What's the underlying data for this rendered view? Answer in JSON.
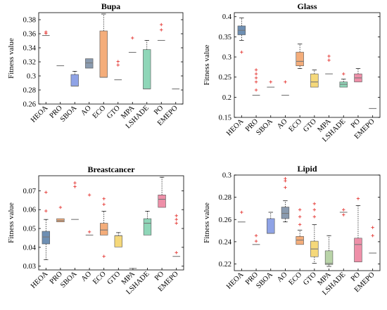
{
  "chart_data": [
    {
      "type": "box",
      "title": "Bupa",
      "ylabel": "Fitness value",
      "ylim": [
        0.26,
        0.39
      ],
      "yticks": [
        0.26,
        0.28,
        0.3,
        0.32,
        0.34,
        0.36,
        0.38
      ],
      "ytick_labels": [
        "0.26",
        "0.28",
        "0.3",
        "0.32",
        "0.34",
        "0.36",
        "0.38"
      ],
      "categories": [
        "HEOA",
        "PRO",
        "SBOA",
        "AO",
        "ECO",
        "GTO",
        "MPA",
        "LSHADE",
        "PO",
        "EMEPO"
      ],
      "boxes": [
        {
          "q1": 0.3575,
          "median": 0.3575,
          "q3": 0.3575,
          "lw": 0.3575,
          "uw": 0.3575,
          "outliers": [
            0.3605,
            0.3625
          ],
          "color": "#f5a3a3"
        },
        {
          "q1": 0.3145,
          "median": 0.3145,
          "q3": 0.3145,
          "lw": 0.3145,
          "uw": 0.3145,
          "outliers": [],
          "color": "#f0c080"
        },
        {
          "q1": 0.2855,
          "median": 0.2855,
          "q3": 0.302,
          "lw": 0.2855,
          "uw": 0.3065,
          "outliers": [],
          "color": "#8fa3e6"
        },
        {
          "q1": 0.311,
          "median": 0.3185,
          "q3": 0.3245,
          "lw": 0.311,
          "uw": 0.3245,
          "outliers": [],
          "color": "#8a9bb0"
        },
        {
          "q1": 0.298,
          "median": 0.298,
          "q3": 0.364,
          "lw": 0.298,
          "uw": 0.388,
          "outliers": [],
          "color": "#f4ad7a"
        },
        {
          "q1": 0.2945,
          "median": 0.2945,
          "q3": 0.2945,
          "lw": 0.2945,
          "uw": 0.2945,
          "outliers": [
            0.3155,
            0.3205
          ],
          "color": "#f5d87a"
        },
        {
          "q1": 0.3335,
          "median": 0.3335,
          "q3": 0.3335,
          "lw": 0.3335,
          "uw": 0.3335,
          "outliers": [
            0.354
          ],
          "color": "#b9d4a8"
        },
        {
          "q1": 0.2815,
          "median": 0.2815,
          "q3": 0.3375,
          "lw": 0.2815,
          "uw": 0.3505,
          "outliers": [],
          "color": "#8fd6b8"
        },
        {
          "q1": 0.3505,
          "median": 0.3505,
          "q3": 0.3505,
          "lw": 0.3505,
          "uw": 0.3505,
          "outliers": [
            0.3655,
            0.373
          ],
          "color": "#ee8fa8"
        },
        {
          "q1": 0.2815,
          "median": 0.2815,
          "q3": 0.2815,
          "lw": 0.2815,
          "uw": 0.2815,
          "outliers": [],
          "color": "#cccccc"
        }
      ]
    },
    {
      "type": "box",
      "title": "Glass",
      "ylabel": "Fitness value",
      "ylim": [
        0.15,
        0.41
      ],
      "yticks": [
        0.15,
        0.2,
        0.25,
        0.3,
        0.35,
        0.4
      ],
      "ytick_labels": [
        "0.15",
        "0.2",
        "0.25",
        "0.3",
        "0.35",
        "0.4"
      ],
      "categories": [
        "HEOA",
        "PRO",
        "SBOA",
        "AO",
        "ECO",
        "GTO",
        "MPA",
        "LSHADE",
        "PO",
        "EMEPO"
      ],
      "boxes": [
        {
          "q1": 0.355,
          "median": 0.366,
          "q3": 0.377,
          "lw": 0.341,
          "uw": 0.397,
          "outliers": [
            0.312
          ],
          "color": "#6e8fb3"
        },
        {
          "q1": 0.205,
          "median": 0.205,
          "q3": 0.205,
          "lw": 0.205,
          "uw": 0.205,
          "outliers": [
            0.218,
            0.238,
            0.248,
            0.258,
            0.268
          ],
          "color": "#f0c080"
        },
        {
          "q1": 0.225,
          "median": 0.225,
          "q3": 0.225,
          "lw": 0.225,
          "uw": 0.225,
          "outliers": [
            0.238
          ],
          "color": "#8fa3e6"
        },
        {
          "q1": 0.205,
          "median": 0.205,
          "q3": 0.205,
          "lw": 0.205,
          "uw": 0.205,
          "outliers": [
            0.238
          ],
          "color": "#8a9bb0"
        },
        {
          "q1": 0.278,
          "median": 0.289,
          "q3": 0.312,
          "lw": 0.271,
          "uw": 0.332,
          "outliers": [],
          "color": "#f4ad7a"
        },
        {
          "q1": 0.225,
          "median": 0.238,
          "q3": 0.258,
          "lw": 0.225,
          "uw": 0.268,
          "outliers": [],
          "color": "#f5d87a"
        },
        {
          "q1": 0.258,
          "median": 0.258,
          "q3": 0.258,
          "lw": 0.258,
          "uw": 0.258,
          "outliers": [
            0.292,
            0.302
          ],
          "color": "#b9d4a8"
        },
        {
          "q1": 0.225,
          "median": 0.232,
          "q3": 0.238,
          "lw": 0.225,
          "uw": 0.245,
          "outliers": [
            0.258
          ],
          "color": "#8fd6b8"
        },
        {
          "q1": 0.238,
          "median": 0.248,
          "q3": 0.258,
          "lw": 0.238,
          "uw": 0.271,
          "outliers": [],
          "color": "#ee8fa8"
        },
        {
          "q1": 0.172,
          "median": 0.172,
          "q3": 0.172,
          "lw": 0.172,
          "uw": 0.172,
          "outliers": [],
          "color": "#cccccc"
        }
      ]
    },
    {
      "type": "box",
      "title": "Breastcancer",
      "ylabel": "Fitness value",
      "ylim": [
        0.028,
        0.078
      ],
      "yticks": [
        0.03,
        0.04,
        0.05,
        0.06,
        0.07
      ],
      "ytick_labels": [
        "0.03",
        "0.04",
        "0.05",
        "0.06",
        "0.07"
      ],
      "categories": [
        "HEOA",
        "PRO",
        "SBOA",
        "AO",
        "ECO",
        "GTO",
        "MPA",
        "LSHADE",
        "PO",
        "EMEPO"
      ],
      "boxes": [
        {
          "q1": 0.0418,
          "median": 0.0455,
          "q3": 0.0485,
          "lw": 0.0335,
          "uw": 0.0548,
          "outliers": [
            0.0593,
            0.0692
          ],
          "color": "#6e8fb3"
        },
        {
          "q1": 0.0535,
          "median": 0.0542,
          "q3": 0.0552,
          "lw": 0.0535,
          "uw": 0.0552,
          "outliers": [
            0.0612
          ],
          "color": "#f4ad7a"
        },
        {
          "q1": 0.0548,
          "median": 0.0548,
          "q3": 0.0548,
          "lw": 0.0548,
          "uw": 0.0548,
          "outliers": [
            0.0722,
            0.0742
          ],
          "color": "#8fa3e6"
        },
        {
          "q1": 0.0465,
          "median": 0.0465,
          "q3": 0.0465,
          "lw": 0.0465,
          "uw": 0.0465,
          "outliers": [
            0.0482,
            0.0678
          ],
          "color": "#8a9bb0"
        },
        {
          "q1": 0.0465,
          "median": 0.0492,
          "q3": 0.0528,
          "lw": 0.0465,
          "uw": 0.0592,
          "outliers": [
            0.0352,
            0.0628,
            0.0658
          ],
          "color": "#f4ad7a"
        },
        {
          "q1": 0.0402,
          "median": 0.0462,
          "q3": 0.0462,
          "lw": 0.0402,
          "uw": 0.0478,
          "outliers": [],
          "color": "#f5d87a"
        },
        {
          "q1": 0.0288,
          "median": 0.0288,
          "q3": 0.0288,
          "lw": 0.0288,
          "uw": 0.0288,
          "outliers": [],
          "color": "#b9d4a8"
        },
        {
          "q1": 0.0465,
          "median": 0.0528,
          "q3": 0.0552,
          "lw": 0.0465,
          "uw": 0.0592,
          "outliers": [],
          "color": "#8fd6b8"
        },
        {
          "q1": 0.0612,
          "median": 0.0655,
          "q3": 0.0678,
          "lw": 0.0612,
          "uw": 0.0772,
          "outliers": [],
          "color": "#ee8fa8"
        },
        {
          "q1": 0.0352,
          "median": 0.0352,
          "q3": 0.0352,
          "lw": 0.0352,
          "uw": 0.0352,
          "outliers": [
            0.0372,
            0.0528,
            0.0548,
            0.0568
          ],
          "color": "#cccccc"
        }
      ]
    },
    {
      "type": "box",
      "title": "Lipid",
      "ylabel": "Fitness value",
      "ylim": [
        0.214,
        0.3
      ],
      "yticks": [
        0.22,
        0.24,
        0.26,
        0.28,
        0.3
      ],
      "ytick_labels": [
        "0.22",
        "0.24",
        "0.26",
        "0.28",
        "0.3"
      ],
      "categories": [
        "HEOA",
        "PRO",
        "SBOA",
        "AO",
        "ECO",
        "GTO",
        "MPA",
        "LSHADE",
        "PO",
        "EMEPO"
      ],
      "boxes": [
        {
          "q1": 0.2578,
          "median": 0.2578,
          "q3": 0.2578,
          "lw": 0.2578,
          "uw": 0.2578,
          "outliers": [
            0.2665
          ],
          "color": "#f5a3a3"
        },
        {
          "q1": 0.2375,
          "median": 0.2375,
          "q3": 0.2375,
          "lw": 0.2375,
          "uw": 0.2375,
          "outliers": [
            0.2405,
            0.2455
          ],
          "color": "#f0c080"
        },
        {
          "q1": 0.2475,
          "median": 0.2475,
          "q3": 0.2608,
          "lw": 0.2475,
          "uw": 0.2665,
          "outliers": [],
          "color": "#8fa3e6"
        },
        {
          "q1": 0.2608,
          "median": 0.2655,
          "q3": 0.2712,
          "lw": 0.2578,
          "uw": 0.2768,
          "outliers": [
            0.2888,
            0.2948,
            0.2968
          ],
          "color": "#8a9bb0"
        },
        {
          "q1": 0.2375,
          "median": 0.2415,
          "q3": 0.2448,
          "lw": 0.2375,
          "uw": 0.2505,
          "outliers": [
            0.2555,
            0.2625,
            0.2688
          ],
          "color": "#f4ad7a"
        },
        {
          "q1": 0.2265,
          "median": 0.2335,
          "q3": 0.2405,
          "lw": 0.2205,
          "uw": 0.2555,
          "outliers": [
            0.2625,
            0.2688,
            0.2742
          ],
          "color": "#f5d87a"
        },
        {
          "q1": 0.2195,
          "median": 0.2205,
          "q3": 0.2318,
          "lw": 0.2178,
          "uw": 0.2455,
          "outliers": [],
          "color": "#b9d4a8"
        },
        {
          "q1": 0.2665,
          "median": 0.2665,
          "q3": 0.2665,
          "lw": 0.2665,
          "uw": 0.2665,
          "outliers": [
            0.2642,
            0.2688
          ],
          "color": "#8fd6b8"
        },
        {
          "q1": 0.2218,
          "median": 0.2375,
          "q3": 0.2432,
          "lw": 0.2218,
          "uw": 0.2725,
          "outliers": [
            0.2788
          ],
          "color": "#ee8fa8"
        },
        {
          "q1": 0.2298,
          "median": 0.2298,
          "q3": 0.2298,
          "lw": 0.2298,
          "uw": 0.2298,
          "outliers": [
            0.2455,
            0.2528
          ],
          "color": "#cccccc"
        }
      ]
    }
  ]
}
